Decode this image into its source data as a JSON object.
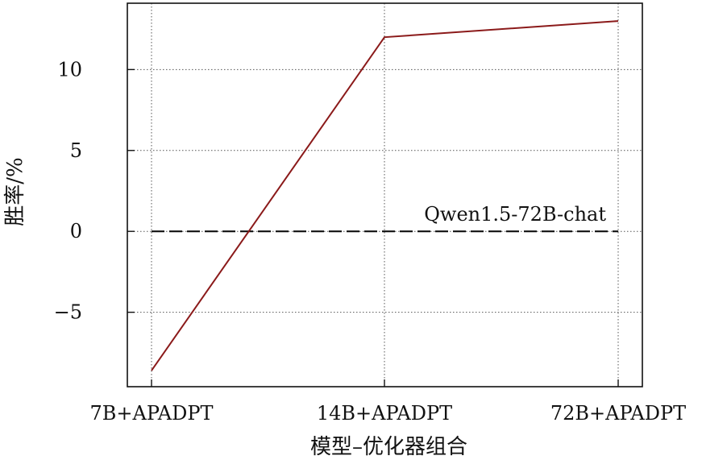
{
  "chart_data": {
    "type": "line",
    "categories": [
      "7B+APADPT",
      "14B+APADPT",
      "72B+APADPT"
    ],
    "series": [
      {
        "values": [
          -8.6,
          12.0,
          13.0
        ],
        "color": "#8b1a1a"
      }
    ],
    "reference_line": {
      "y": 0,
      "label": "Qwen1.5-72B-chat",
      "style": "dashed",
      "color": "#111111"
    },
    "xlabel": "模型–优化器组合",
    "ylabel": "胜率/%",
    "ylim": [
      -9.6,
      14.1
    ],
    "yticks": [
      -5,
      0,
      5,
      10
    ],
    "ytick_labels": [
      "−5",
      "0",
      "5",
      "10"
    ],
    "grid": true,
    "grid_style": "dotted"
  }
}
